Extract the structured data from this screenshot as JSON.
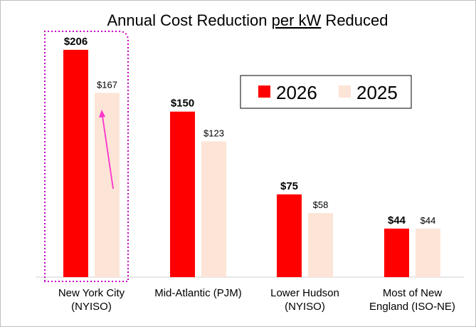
{
  "chart_data": {
    "type": "bar",
    "title_parts": [
      "Annual Cost Reduction ",
      "per kW",
      " Reduced"
    ],
    "categories": [
      [
        "New York City",
        "(NYISO)"
      ],
      [
        "Mid-Atlantic (PJM)"
      ],
      [
        "Lower Hudson",
        "(NYISO)"
      ],
      [
        "Most of New",
        "England (ISO-NE)"
      ]
    ],
    "series": [
      {
        "name": "2026",
        "values": [
          206,
          150,
          75,
          44
        ],
        "labels": [
          "$206",
          "$150",
          "$75",
          "$44"
        ],
        "color": "#ff0000"
      },
      {
        "name": "2025",
        "values": [
          167,
          123,
          58,
          44
        ],
        "labels": [
          "$167",
          "$123",
          "$58",
          "$44"
        ],
        "color": "#fce4d6"
      }
    ],
    "ylim": [
      0,
      215
    ],
    "grid": false,
    "legend_position": "top-right",
    "highlight_category": 0,
    "highlight_color": "#c000c0",
    "arrow_color": "#ff33cc"
  }
}
